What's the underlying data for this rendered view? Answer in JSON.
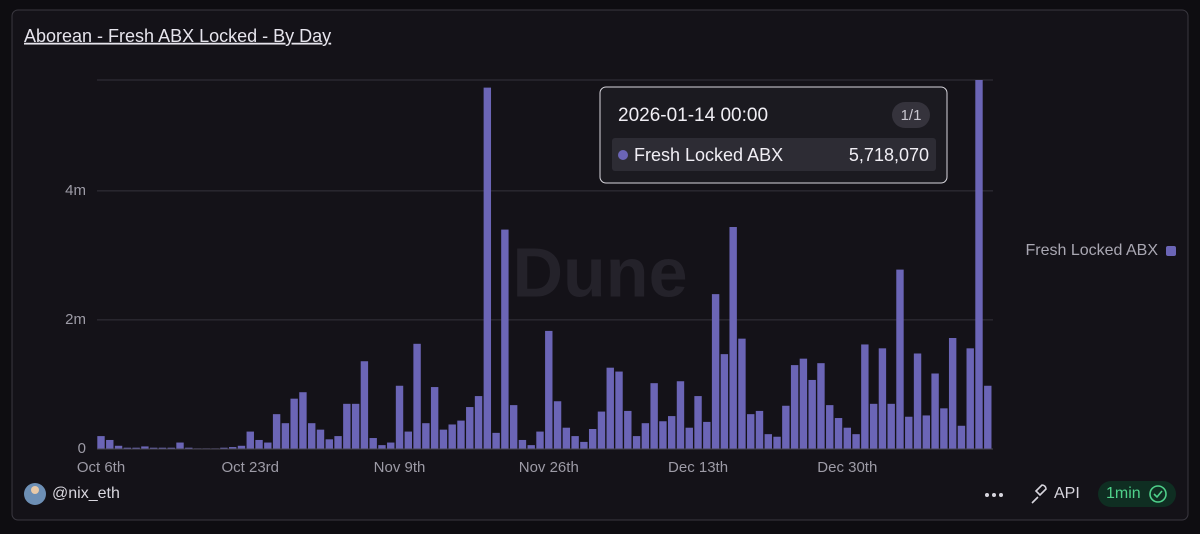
{
  "chart_data": {
    "type": "bar",
    "title": "Aborean - Fresh ABX Locked - By Day",
    "categories": [
      "Oct 6th",
      null,
      null,
      null,
      null,
      null,
      null,
      null,
      null,
      null,
      null,
      null,
      null,
      null,
      null,
      null,
      null,
      "Oct 23rd",
      null,
      null,
      null,
      null,
      null,
      null,
      null,
      null,
      null,
      null,
      null,
      null,
      null,
      null,
      null,
      null,
      "Nov 9th",
      null,
      null,
      null,
      null,
      null,
      null,
      null,
      null,
      null,
      null,
      null,
      null,
      null,
      null,
      null,
      null,
      "Nov 26th",
      null,
      null,
      null,
      null,
      null,
      null,
      null,
      null,
      null,
      null,
      null,
      null,
      null,
      null,
      null,
      null,
      "Dec 13th",
      null,
      null,
      null,
      null,
      null,
      null,
      null,
      null,
      null,
      null,
      null,
      null,
      null,
      null,
      null,
      null,
      "Dec 30th",
      null,
      null,
      null,
      null,
      null,
      null,
      null,
      null,
      null,
      null,
      null,
      null,
      null,
      null,
      null,
      null
    ],
    "series": [
      {
        "name": "Fresh Locked ABX",
        "color": "#6b65b6",
        "values": [
          200000,
          140000,
          50000,
          20000,
          20000,
          40000,
          20000,
          20000,
          20000,
          100000,
          20000,
          10000,
          10000,
          10000,
          20000,
          30000,
          50000,
          270000,
          140000,
          100000,
          540000,
          400000,
          780000,
          880000,
          400000,
          300000,
          150000,
          200000,
          700000,
          700000,
          1360000,
          170000,
          60000,
          100000,
          980000,
          270000,
          1630000,
          400000,
          960000,
          300000,
          380000,
          440000,
          650000,
          820000,
          5600000,
          250000,
          3400000,
          680000,
          140000,
          60000,
          270000,
          1830000,
          740000,
          330000,
          200000,
          110000,
          310000,
          580000,
          1260000,
          1200000,
          590000,
          200000,
          400000,
          1020000,
          430000,
          510000,
          1050000,
          330000,
          820000,
          420000,
          2400000,
          1470000,
          3440000,
          1710000,
          540000,
          590000,
          230000,
          190000,
          670000,
          1300000,
          1400000,
          1070000,
          1330000,
          680000,
          480000,
          330000,
          230000,
          1620000,
          700000,
          1560000,
          700000,
          2780000,
          500000,
          1480000,
          520000,
          1170000,
          630000,
          1720000,
          360000,
          1560000,
          5718070,
          980000
        ]
      }
    ],
    "ylim": [
      0,
      5718070
    ],
    "yticks": [
      0,
      {
        "value": 2000000,
        "label": "2m"
      },
      {
        "value": 4000000,
        "label": "4m"
      }
    ],
    "grid": true,
    "legend": "right",
    "tooltip": {
      "title": "2026-01-14 00:00",
      "counter": "1/1",
      "series": "Fresh Locked ABX",
      "value": "5,718,070"
    }
  },
  "footer": {
    "user": "@nix_eth",
    "api": "API",
    "refresh": "1min"
  },
  "watermark": "Dune"
}
